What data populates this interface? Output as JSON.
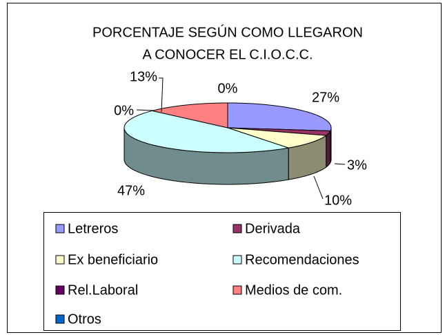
{
  "chart_data": {
    "type": "pie3d",
    "title": [
      "PORCENTAJE SEGÚN COMO LLEGARON",
      "A CONOCER EL C.I.O.C.C."
    ],
    "categories": [
      "Letreros",
      "Derivada",
      "Ex beneficiario",
      "Recomendaciones",
      "Rel.Laboral",
      "Medios de com.",
      "Otros"
    ],
    "values": [
      27,
      3,
      10,
      47,
      0,
      13,
      0
    ],
    "value_labels": [
      "27%",
      "3%",
      "10%",
      "47%",
      "0%",
      "13%",
      "0%"
    ],
    "colors": [
      "#9999ff",
      "#993366",
      "#ffffcc",
      "#ccffff",
      "#660066",
      "#ff8080",
      "#0066cc"
    ],
    "legend": "bottom"
  }
}
